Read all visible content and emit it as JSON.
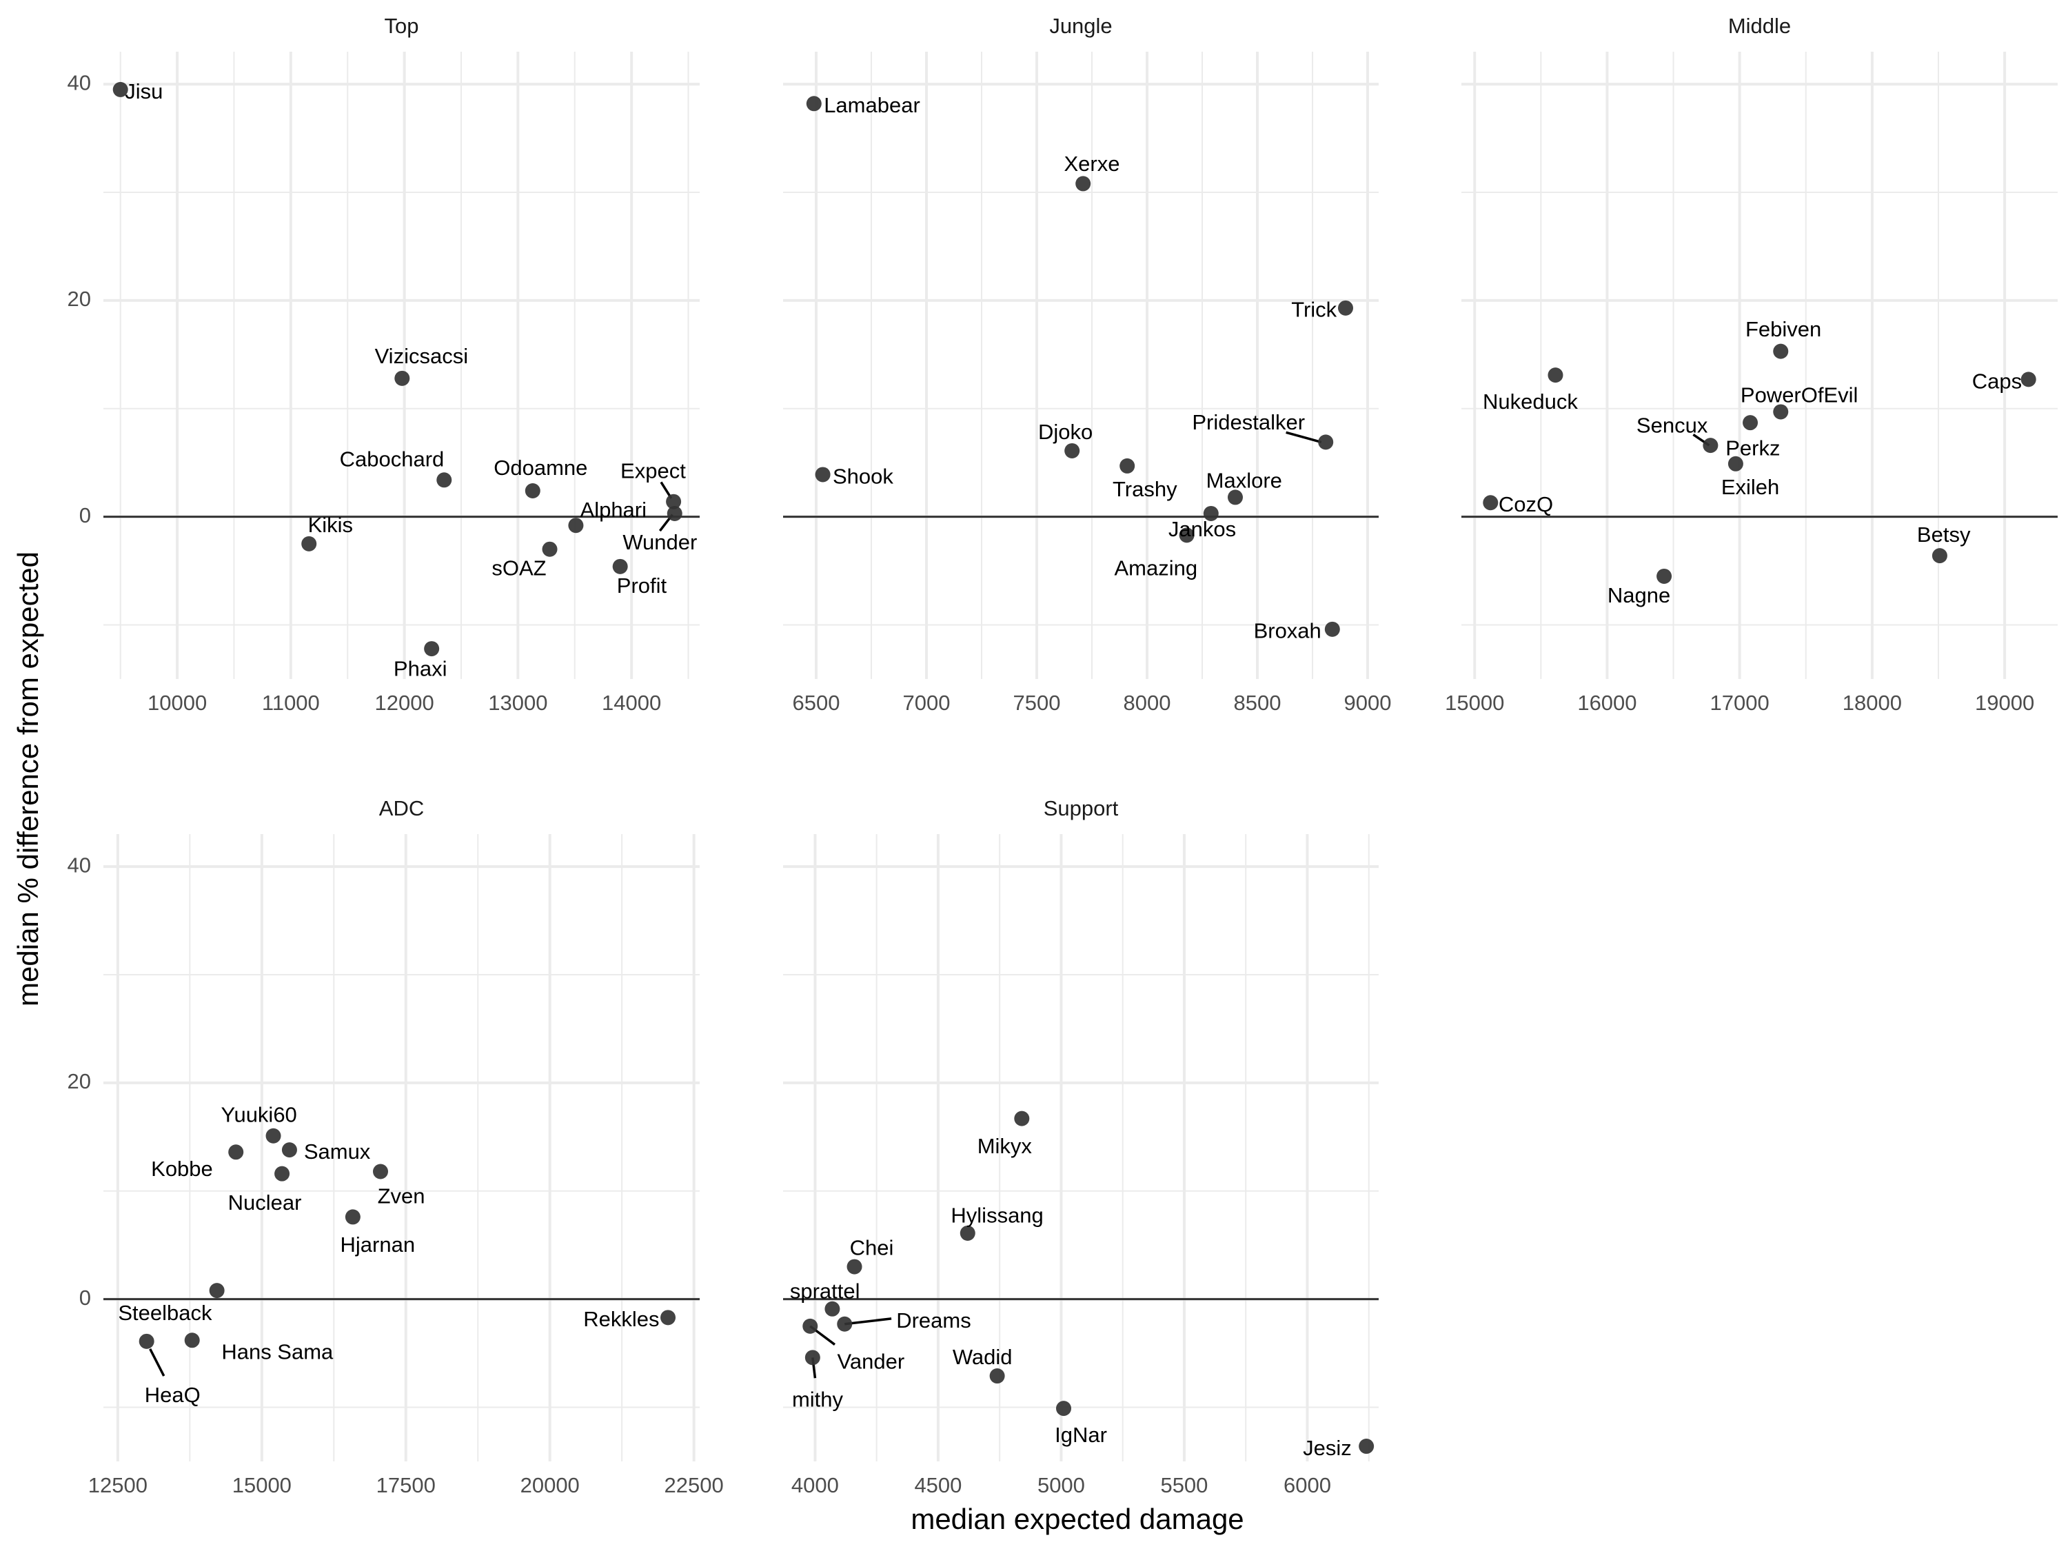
{
  "chart_data": {
    "type": "scatter",
    "xlabel": "median expected damage",
    "ylabel": "median % difference from expected",
    "ylim": [
      -15,
      43
    ],
    "y_ticks": [
      0,
      20,
      40
    ],
    "grid": true,
    "legend": "none",
    "colors": {
      "point": "#333333",
      "zero_line": "#333333",
      "grid": "#ebebeb"
    },
    "panels": [
      {
        "title": "Top",
        "xlim": [
          9350,
          14600
        ],
        "x_ticks": [
          10000,
          11000,
          12000,
          13000,
          14000
        ],
        "points": [
          {
            "name": "Jisu",
            "x": 9500,
            "y": 39.5,
            "label_x": 9540,
            "label_y": 39.2,
            "anchor": "start"
          },
          {
            "name": "Vizicsacsi",
            "x": 11980,
            "y": 12.8,
            "label_x": 12150,
            "label_y": 14.7,
            "anchor": "middle"
          },
          {
            "name": "Cabochard",
            "x": 12350,
            "y": 3.4,
            "label_x": 12350,
            "label_y": 5.2,
            "anchor": "end"
          },
          {
            "name": "Odoamne",
            "x": 13130,
            "y": 2.4,
            "label_x": 13200,
            "label_y": 4.4,
            "anchor": "middle"
          },
          {
            "name": "Expect",
            "x": 14370,
            "y": 1.4,
            "label_x": 14190,
            "label_y": 4.1,
            "anchor": "middle",
            "leader": [
              14260,
              3.2,
              14350,
              1.7
            ]
          },
          {
            "name": "Kikis",
            "x": 11160,
            "y": -2.5,
            "label_x": 11150,
            "label_y": -0.9,
            "anchor": "start"
          },
          {
            "name": "Alphari",
            "x": 13510,
            "y": -0.8,
            "label_x": 13840,
            "label_y": 0.5,
            "anchor": "middle"
          },
          {
            "name": "Wunder",
            "x": 14380,
            "y": 0.3,
            "label_x": 14250,
            "label_y": -2.5,
            "anchor": "middle",
            "leader": [
              14250,
              -1.3,
              14360,
              0.2
            ]
          },
          {
            "name": "sOAZ",
            "x": 13280,
            "y": -3.0,
            "label_x": 13250,
            "label_y": -4.9,
            "anchor": "end"
          },
          {
            "name": "Profit",
            "x": 13900,
            "y": -4.6,
            "label_x": 14090,
            "label_y": -6.5,
            "anchor": "middle"
          },
          {
            "name": "Phaxi",
            "x": 12240,
            "y": -12.2,
            "label_x": 12140,
            "label_y": -14.2,
            "anchor": "middle"
          }
        ]
      },
      {
        "title": "Jungle",
        "xlim": [
          6350,
          9050
        ],
        "x_ticks": [
          6500,
          7000,
          7500,
          8000,
          8500,
          9000
        ],
        "points": [
          {
            "name": "Lamabear",
            "x": 6490,
            "y": 38.2,
            "label_x": 6535,
            "label_y": 37.9,
            "anchor": "start"
          },
          {
            "name": "Xerxe",
            "x": 7710,
            "y": 30.8,
            "label_x": 7750,
            "label_y": 32.5,
            "anchor": "middle"
          },
          {
            "name": "Trick",
            "x": 8900,
            "y": 19.3,
            "label_x": 8860,
            "label_y": 19.0,
            "anchor": "end"
          },
          {
            "name": "Shook",
            "x": 6530,
            "y": 3.9,
            "label_x": 6575,
            "label_y": 3.6,
            "anchor": "start"
          },
          {
            "name": "Djoko",
            "x": 7660,
            "y": 6.1,
            "label_x": 7630,
            "label_y": 7.7,
            "anchor": "middle"
          },
          {
            "name": "Pridestalker",
            "x": 8810,
            "y": 6.9,
            "label_x": 8460,
            "label_y": 8.6,
            "anchor": "middle",
            "leader": [
              8630,
              7.8,
              8790,
              6.9
            ]
          },
          {
            "name": "Trashy",
            "x": 7910,
            "y": 4.7,
            "label_x": 7990,
            "label_y": 2.4,
            "anchor": "middle"
          },
          {
            "name": "Maxlore",
            "x": 8400,
            "y": 1.8,
            "label_x": 8440,
            "label_y": 3.2,
            "anchor": "middle"
          },
          {
            "name": "Jankos",
            "x": 8290,
            "y": 0.3,
            "label_x": 8250,
            "label_y": -1.3,
            "anchor": "middle"
          },
          {
            "name": "Amazing",
            "x": 8180,
            "y": -1.7,
            "label_x": 8040,
            "label_y": -4.9,
            "anchor": "middle"
          },
          {
            "name": "Broxah",
            "x": 8840,
            "y": -10.4,
            "label_x": 8790,
            "label_y": -10.7,
            "anchor": "end"
          }
        ]
      },
      {
        "title": "Middle",
        "xlim": [
          14900,
          19400
        ],
        "x_ticks": [
          15000,
          16000,
          17000,
          18000,
          19000
        ],
        "points": [
          {
            "name": "Febiven",
            "x": 17310,
            "y": 15.3,
            "label_x": 17330,
            "label_y": 17.2,
            "anchor": "middle"
          },
          {
            "name": "Nukeduck",
            "x": 15610,
            "y": 13.1,
            "label_x": 15420,
            "label_y": 10.5,
            "anchor": "middle"
          },
          {
            "name": "Caps",
            "x": 19180,
            "y": 12.7,
            "label_x": 19130,
            "label_y": 12.4,
            "anchor": "end"
          },
          {
            "name": "PowerOfEvil",
            "x": 17310,
            "y": 9.7,
            "label_x": 17450,
            "label_y": 11.1,
            "anchor": "middle"
          },
          {
            "name": "Sencux",
            "x": 16780,
            "y": 6.6,
            "label_x": 16490,
            "label_y": 8.3,
            "anchor": "middle",
            "leader": [
              16650,
              7.6,
              16770,
              6.6
            ]
          },
          {
            "name": "Perkz",
            "x": 17080,
            "y": 8.7,
            "label_x": 17100,
            "label_y": 6.2,
            "anchor": "middle"
          },
          {
            "name": "Exileh",
            "x": 16970,
            "y": 4.9,
            "label_x": 17080,
            "label_y": 2.6,
            "anchor": "middle"
          },
          {
            "name": "CozQ",
            "x": 15120,
            "y": 1.3,
            "label_x": 15180,
            "label_y": 1.0,
            "anchor": "start"
          },
          {
            "name": "Betsy",
            "x": 18510,
            "y": -3.6,
            "label_x": 18540,
            "label_y": -1.8,
            "anchor": "middle"
          },
          {
            "name": "Nagne",
            "x": 16430,
            "y": -5.5,
            "label_x": 16240,
            "label_y": -7.4,
            "anchor": "middle"
          }
        ]
      },
      {
        "title": "ADC",
        "xlim": [
          12250,
          22600
        ],
        "x_ticks": [
          12500,
          15000,
          17500,
          20000,
          22500
        ],
        "points": [
          {
            "name": "Yuuki60",
            "x": 15200,
            "y": 15.1,
            "label_x": 14950,
            "label_y": 16.9,
            "anchor": "middle"
          },
          {
            "name": "Kobbe",
            "x": 14550,
            "y": 13.6,
            "label_x": 14150,
            "label_y": 11.9,
            "anchor": "end"
          },
          {
            "name": "Samux",
            "x": 15480,
            "y": 13.8,
            "label_x": 15730,
            "label_y": 13.5,
            "anchor": "start"
          },
          {
            "name": "Nuclear",
            "x": 15350,
            "y": 11.6,
            "label_x": 15050,
            "label_y": 8.8,
            "anchor": "middle"
          },
          {
            "name": "Zven",
            "x": 17060,
            "y": 11.8,
            "label_x": 17420,
            "label_y": 9.4,
            "anchor": "middle"
          },
          {
            "name": "Hjarnan",
            "x": 16580,
            "y": 7.6,
            "label_x": 17010,
            "label_y": 4.9,
            "anchor": "middle"
          },
          {
            "name": "Steelback",
            "x": 14220,
            "y": 0.8,
            "label_x": 13320,
            "label_y": -1.4,
            "anchor": "middle"
          },
          {
            "name": "Hans Sama",
            "x": 13790,
            "y": -3.8,
            "label_x": 14300,
            "label_y": -5.0,
            "anchor": "start"
          },
          {
            "name": "Rekkles",
            "x": 22050,
            "y": -1.7,
            "label_x": 21900,
            "label_y": -2.0,
            "anchor": "end"
          },
          {
            "name": "HeaQ",
            "x": 13000,
            "y": -3.9,
            "label_x": 13450,
            "label_y": -9.0,
            "anchor": "middle",
            "leader": [
              13060,
              -4.6,
              13300,
              -7.1
            ]
          }
        ]
      },
      {
        "title": "Support",
        "xlim": [
          3870,
          6290
        ],
        "x_ticks": [
          4000,
          4500,
          5000,
          5500,
          6000
        ],
        "points": [
          {
            "name": "Mikyx",
            "x": 4840,
            "y": 16.7,
            "label_x": 4770,
            "label_y": 14.0,
            "anchor": "middle"
          },
          {
            "name": "Hylissang",
            "x": 4620,
            "y": 6.1,
            "label_x": 4740,
            "label_y": 7.6,
            "anchor": "middle"
          },
          {
            "name": "Chei",
            "x": 4160,
            "y": 3.0,
            "label_x": 4230,
            "label_y": 4.6,
            "anchor": "middle"
          },
          {
            "name": "sprattel",
            "x": 4070,
            "y": -0.9,
            "label_x": 4040,
            "label_y": 0.6,
            "anchor": "middle"
          },
          {
            "name": "Dreams",
            "x": 4120,
            "y": -2.3,
            "label_x": 4330,
            "label_y": -2.1,
            "anchor": "start",
            "leader": [
              4120,
              -2.3,
              4310,
              -1.8
            ]
          },
          {
            "name": "Vander",
            "x": 3980,
            "y": -2.5,
            "label_x": 4090,
            "label_y": -5.9,
            "anchor": "start",
            "leader": [
              3980,
              -2.5,
              4080,
              -4.2
            ]
          },
          {
            "name": "mithy",
            "x": 3990,
            "y": -5.4,
            "label_x": 4010,
            "label_y": -9.4,
            "anchor": "middle",
            "leader": [
              3990,
              -5.4,
              4000,
              -7.3
            ]
          },
          {
            "name": "Wadid",
            "x": 4740,
            "y": -7.1,
            "label_x": 4680,
            "label_y": -5.5,
            "anchor": "middle"
          },
          {
            "name": "IgNar",
            "x": 5010,
            "y": -10.1,
            "label_x": 5080,
            "label_y": -12.7,
            "anchor": "middle"
          },
          {
            "name": "Jesiz",
            "x": 6240,
            "y": -13.6,
            "label_x": 6180,
            "label_y": -13.9,
            "anchor": "end"
          }
        ]
      }
    ]
  }
}
